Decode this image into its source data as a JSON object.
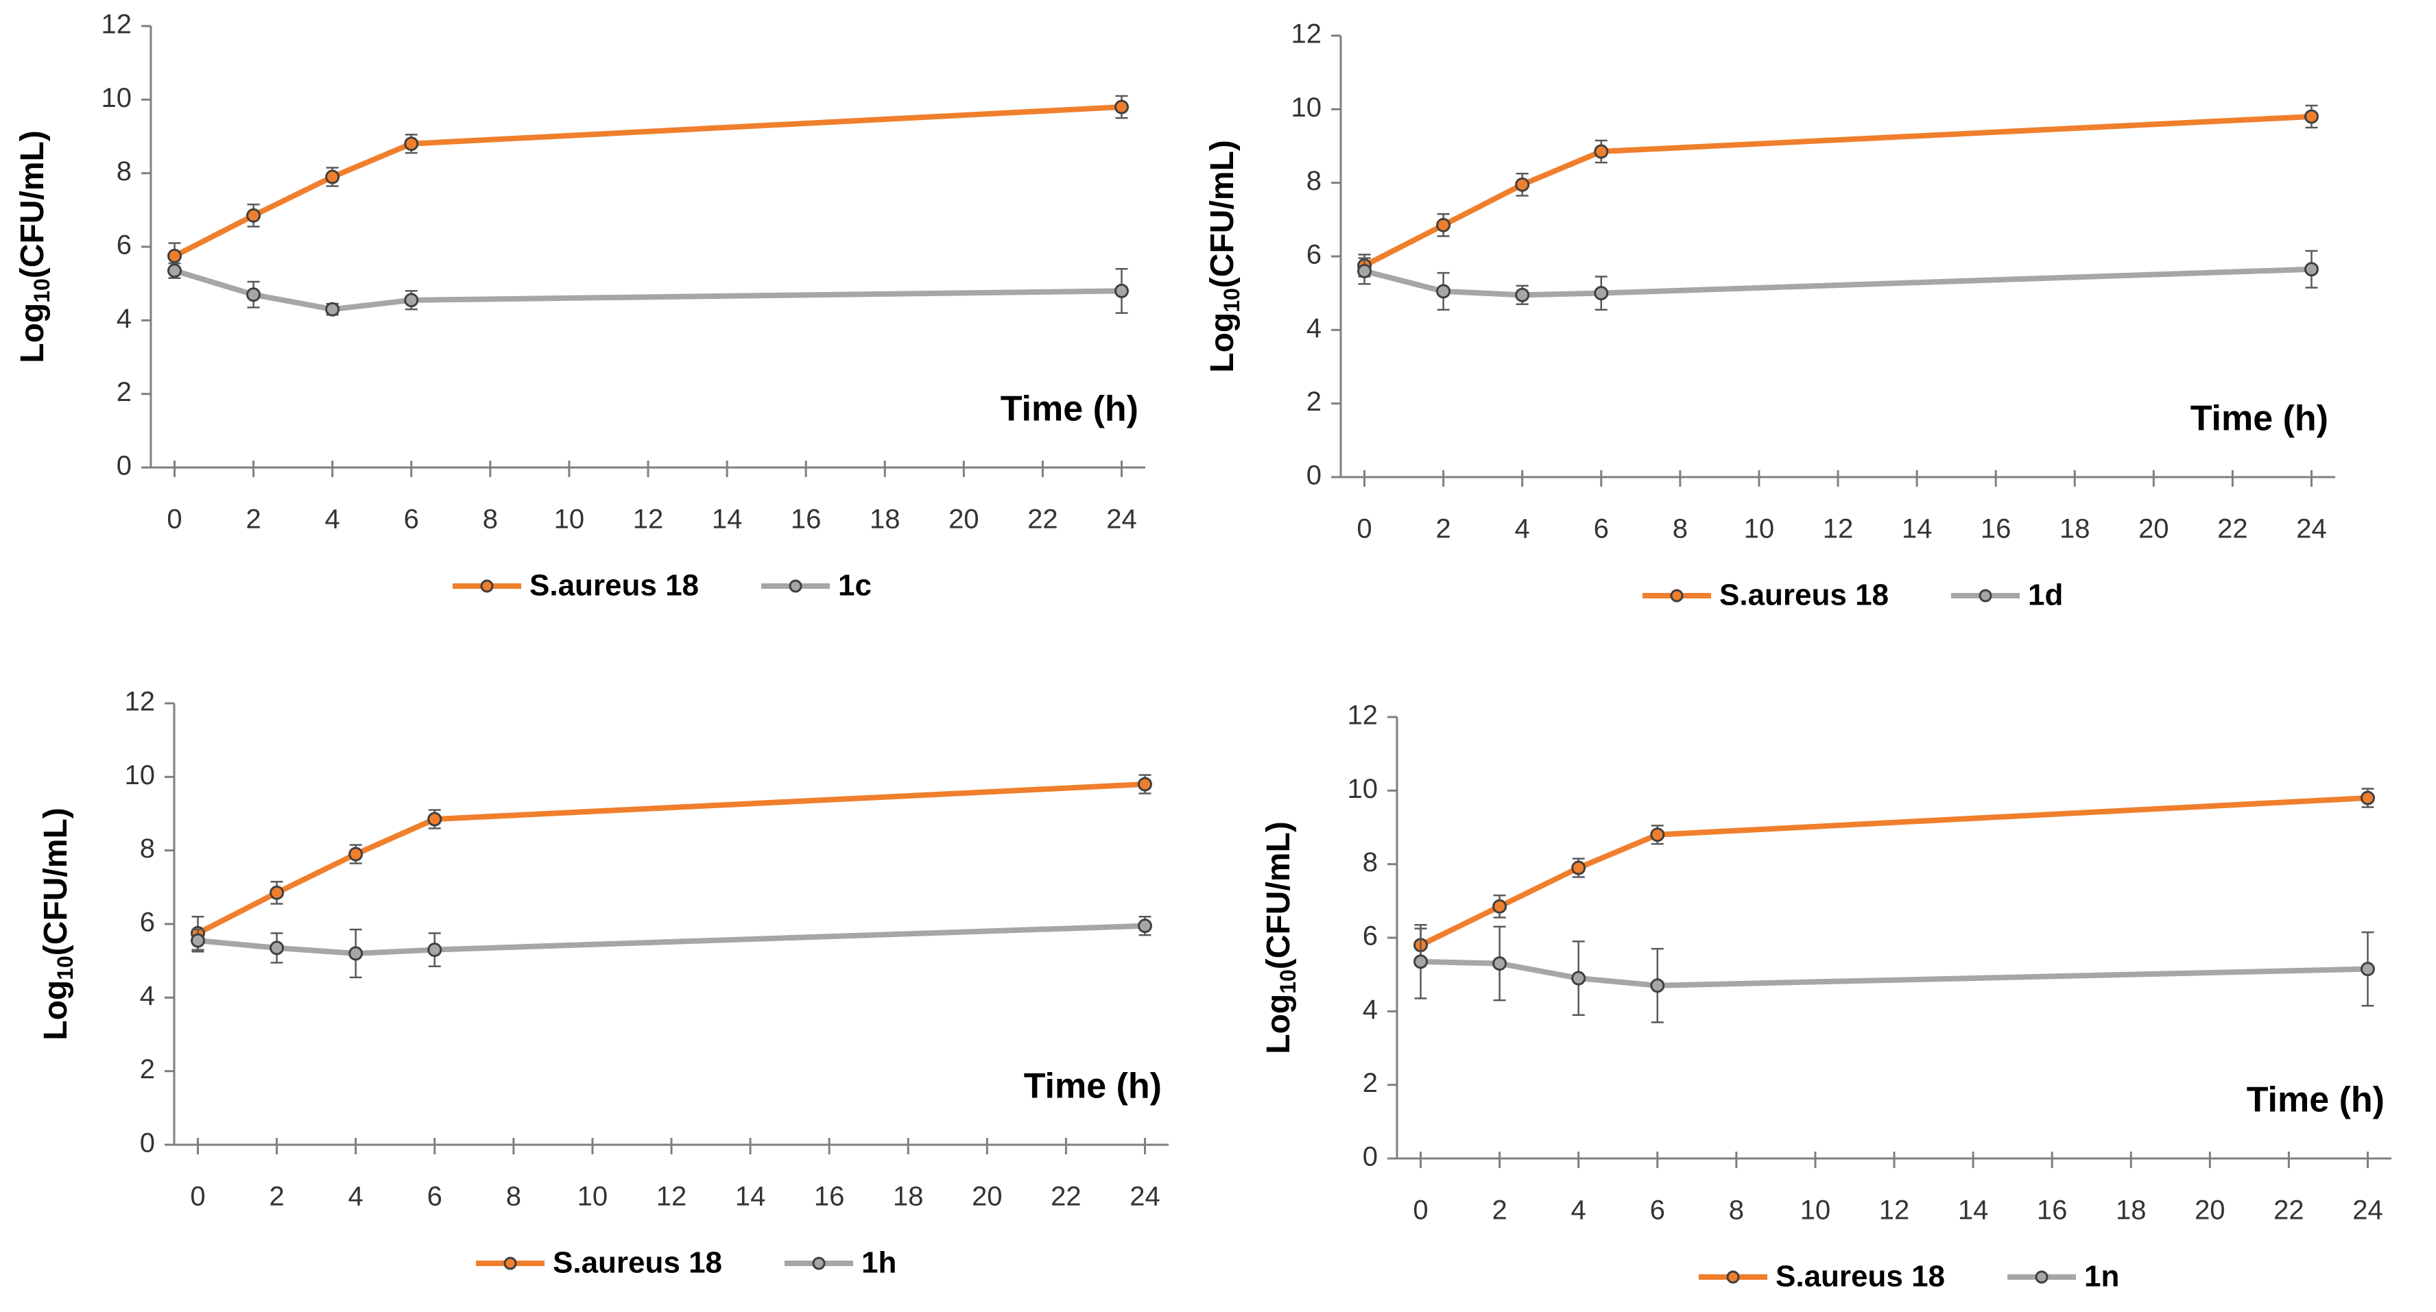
{
  "chart_data": [
    {
      "type": "line",
      "y_label": {
        "prefix": "Log",
        "subscript": "10",
        "suffix": "(CFU/mL)"
      },
      "x_label": "Time (h)",
      "x": [
        0,
        2,
        4,
        6,
        24
      ],
      "xlim": [
        -0.6,
        24.6
      ],
      "xticks": [
        0,
        2,
        4,
        6,
        8,
        10,
        12,
        14,
        16,
        18,
        20,
        22,
        24
      ],
      "ylim": [
        0,
        12
      ],
      "yticks": [
        0,
        2,
        4,
        6,
        8,
        10,
        12
      ],
      "legend": "bottom",
      "series": [
        {
          "name": "S.aureus 18",
          "color": "#f07f2d",
          "values": [
            5.75,
            6.85,
            7.9,
            8.8,
            9.8
          ],
          "errors": [
            0.35,
            0.3,
            0.25,
            0.25,
            0.3
          ]
        },
        {
          "name": "1c",
          "color": "#a6a6a6",
          "values": [
            5.35,
            4.7,
            4.3,
            4.55,
            4.8
          ],
          "errors": [
            0.2,
            0.35,
            0.15,
            0.25,
            0.6
          ]
        }
      ]
    },
    {
      "type": "line",
      "y_label": {
        "prefix": "Log",
        "subscript": "10",
        "suffix": "(CFU/mL)"
      },
      "x_label": "Time (h)",
      "x": [
        0,
        2,
        4,
        6,
        24
      ],
      "xlim": [
        -0.6,
        24.6
      ],
      "xticks": [
        0,
        2,
        4,
        6,
        8,
        10,
        12,
        14,
        16,
        18,
        20,
        22,
        24
      ],
      "ylim": [
        0,
        12
      ],
      "yticks": [
        0,
        2,
        4,
        6,
        8,
        10,
        12
      ],
      "legend": "bottom",
      "series": [
        {
          "name": "S.aureus 18",
          "color": "#f07f2d",
          "values": [
            5.75,
            6.85,
            7.95,
            8.85,
            9.8
          ],
          "errors": [
            0.3,
            0.3,
            0.3,
            0.3,
            0.3
          ]
        },
        {
          "name": "1d",
          "color": "#a6a6a6",
          "values": [
            5.6,
            5.05,
            4.95,
            5.0,
            5.65
          ],
          "errors": [
            0.35,
            0.5,
            0.25,
            0.45,
            0.5
          ]
        }
      ]
    },
    {
      "type": "line",
      "y_label": {
        "prefix": "Log",
        "subscript": "10",
        "suffix": "(CFU/mL)"
      },
      "x_label": "Time (h)",
      "x": [
        0,
        2,
        4,
        6,
        24
      ],
      "xlim": [
        -0.6,
        24.6
      ],
      "xticks": [
        0,
        2,
        4,
        6,
        8,
        10,
        12,
        14,
        16,
        18,
        20,
        22,
        24
      ],
      "ylim": [
        0,
        12
      ],
      "yticks": [
        0,
        2,
        4,
        6,
        8,
        10,
        12
      ],
      "legend": "bottom",
      "series": [
        {
          "name": "S.aureus 18",
          "color": "#f07f2d",
          "values": [
            5.75,
            6.85,
            7.9,
            8.85,
            9.8
          ],
          "errors": [
            0.45,
            0.3,
            0.25,
            0.25,
            0.25
          ]
        },
        {
          "name": "1h",
          "color": "#a6a6a6",
          "values": [
            5.55,
            5.35,
            5.2,
            5.3,
            5.95
          ],
          "errors": [
            0.3,
            0.4,
            0.65,
            0.45,
            0.25
          ]
        }
      ]
    },
    {
      "type": "line",
      "y_label": {
        "prefix": "Log",
        "subscript": "10",
        "suffix": "(CFU/mL)"
      },
      "x_label": "Time (h)",
      "x": [
        0,
        2,
        4,
        6,
        24
      ],
      "xlim": [
        -0.6,
        24.6
      ],
      "xticks": [
        0,
        2,
        4,
        6,
        8,
        10,
        12,
        14,
        16,
        18,
        20,
        22,
        24
      ],
      "ylim": [
        0,
        12
      ],
      "yticks": [
        0,
        2,
        4,
        6,
        8,
        10,
        12
      ],
      "legend": "bottom",
      "series": [
        {
          "name": "S.aureus 18",
          "color": "#f07f2d",
          "values": [
            5.8,
            6.85,
            7.9,
            8.8,
            9.8
          ],
          "errors": [
            0.45,
            0.3,
            0.25,
            0.25,
            0.25
          ]
        },
        {
          "name": "1n",
          "color": "#a6a6a6",
          "values": [
            5.35,
            5.3,
            4.9,
            4.7,
            5.15
          ],
          "errors": [
            1.0,
            1.0,
            1.0,
            1.0,
            1.0
          ]
        }
      ]
    }
  ]
}
